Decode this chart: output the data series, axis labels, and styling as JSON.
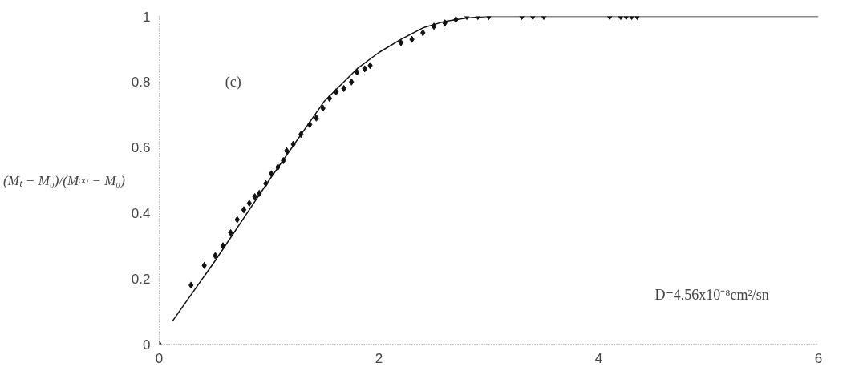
{
  "chart_data": {
    "type": "scatter",
    "ylabel": "(Mₜ − M₀)/(M∞ − M₀)",
    "xlim": [
      0,
      6
    ],
    "xticks": [
      0,
      2,
      4,
      6
    ],
    "ylim": [
      0,
      1
    ],
    "yticks": [
      0,
      0.2,
      0.4,
      0.6,
      0.8,
      1
    ],
    "grid": false,
    "annotations": [
      "(c)",
      "D=4.56x10⁻⁸cm²/sn"
    ],
    "series": [
      {
        "marker": "diamond",
        "color": "#111111",
        "x": [
          0,
          0.29,
          0.41,
          0.51,
          0.58,
          0.65,
          0.71,
          0.77,
          0.82,
          0.87,
          0.91,
          0.97,
          1.02,
          1.08,
          1.13,
          1.16,
          1.22,
          1.29,
          1.37,
          1.43,
          1.49,
          1.55,
          1.61,
          1.68,
          1.75,
          1.8,
          1.87,
          1.92,
          2.2,
          2.3,
          2.4,
          2.5,
          2.6,
          2.7,
          2.8,
          2.9,
          3.0,
          3.3,
          3.4,
          3.5,
          4.1,
          4.2,
          4.25,
          4.3,
          4.35
        ],
        "values": [
          0,
          0.18,
          0.24,
          0.27,
          0.3,
          0.34,
          0.38,
          0.41,
          0.43,
          0.45,
          0.46,
          0.49,
          0.52,
          0.54,
          0.56,
          0.59,
          0.61,
          0.64,
          0.67,
          0.69,
          0.72,
          0.75,
          0.77,
          0.78,
          0.8,
          0.83,
          0.84,
          0.85,
          0.92,
          0.93,
          0.95,
          0.97,
          0.98,
          0.99,
          1.0,
          1.0,
          1.0,
          1.0,
          1.0,
          1.0,
          1.0,
          1.0,
          1.0,
          1.0,
          1.0
        ]
      },
      {
        "type": "line",
        "marker": "none",
        "line_style": "solid",
        "color": "#111111",
        "x": [
          0.12,
          0.5,
          1.0,
          1.5,
          1.8,
          2.0,
          2.2,
          2.4,
          2.6,
          2.8,
          3.0,
          4.0,
          6.0
        ],
        "values": [
          0.07,
          0.25,
          0.5,
          0.74,
          0.84,
          0.89,
          0.93,
          0.965,
          0.985,
          0.995,
          1.0,
          1.0,
          1.0
        ]
      }
    ]
  }
}
